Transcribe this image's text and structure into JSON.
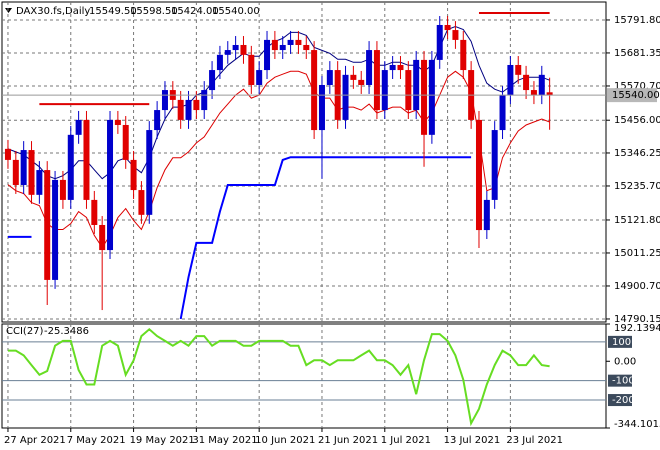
{
  "chart_data": [
    {
      "type": "candlestick",
      "title": "DAX30.fs,Daily",
      "header_values": [
        "15549.50",
        "15598.50",
        "15424.00",
        "15540.00"
      ],
      "open": [
        15360,
        15323,
        15239,
        15356,
        15206,
        15289,
        14921,
        15256,
        15189,
        15407,
        15457,
        15189,
        15105,
        15021,
        15457,
        15440,
        15323,
        15222,
        15139,
        15423,
        15490,
        15557,
        15524,
        15457,
        15524,
        15490,
        15557,
        15624,
        15675,
        15691,
        15708,
        15675,
        15574,
        15624,
        15725,
        15691,
        15708,
        15725,
        15708,
        15691,
        15423,
        15574,
        15624,
        15457,
        15608,
        15591,
        15574,
        15691,
        15490,
        15624,
        15641,
        15624,
        15490,
        15658,
        15407,
        15658,
        15775,
        15758,
        15725,
        15624,
        15457,
        15088,
        15189,
        15423,
        15540,
        15641,
        15608,
        15557,
        15540,
        15549.5
      ],
      "high": [
        15390,
        15353,
        15386,
        15386,
        15319,
        15319,
        15286,
        15286,
        15437,
        15487,
        15487,
        15219,
        15135,
        15487,
        15487,
        15470,
        15353,
        15252,
        15453,
        15520,
        15587,
        15587,
        15554,
        15554,
        15554,
        15587,
        15654,
        15705,
        15721,
        15738,
        15738,
        15705,
        15654,
        15755,
        15755,
        15738,
        15755,
        15755,
        15738,
        15721,
        15604,
        15654,
        15654,
        15638,
        15638,
        15621,
        15721,
        15721,
        15654,
        15671,
        15671,
        15654,
        15688,
        15688,
        15688,
        15805,
        15805,
        15788,
        15755,
        15654,
        15487,
        15219,
        15453,
        15570,
        15671,
        15671,
        15638,
        15587,
        15638,
        15598.5
      ],
      "low": [
        15293,
        15209,
        15209,
        15176,
        15176,
        14837,
        14891,
        15159,
        15159,
        15377,
        15159,
        15075,
        14820,
        14991,
        15410,
        15293,
        15192,
        15109,
        15109,
        15393,
        15460,
        15494,
        15427,
        15427,
        15460,
        15460,
        15527,
        15594,
        15645,
        15661,
        15645,
        15544,
        15544,
        15594,
        15661,
        15661,
        15678,
        15678,
        15661,
        15393,
        15260,
        15544,
        15427,
        15427,
        15561,
        15544,
        15544,
        15460,
        15460,
        15594,
        15594,
        15460,
        15460,
        15300,
        15377,
        15628,
        15728,
        15695,
        15594,
        15427,
        15028,
        15058,
        15159,
        15393,
        15510,
        15578,
        15527,
        15510,
        15510,
        15424
      ],
      "close": [
        15323,
        15239,
        15356,
        15206,
        15289,
        14921,
        15256,
        15189,
        15407,
        15457,
        15189,
        15105,
        15021,
        15457,
        15440,
        15323,
        15222,
        15139,
        15423,
        15490,
        15557,
        15524,
        15457,
        15524,
        15490,
        15557,
        15624,
        15675,
        15691,
        15708,
        15675,
        15574,
        15624,
        15725,
        15691,
        15708,
        15725,
        15708,
        15691,
        15423,
        15574,
        15624,
        15457,
        15608,
        15591,
        15574,
        15691,
        15490,
        15624,
        15641,
        15624,
        15490,
        15658,
        15407,
        15658,
        15775,
        15758,
        15725,
        15624,
        15457,
        15088,
        15189,
        15423,
        15540,
        15641,
        15608,
        15557,
        15540,
        15608,
        15540
      ],
      "up_color": "#0000cc",
      "down_color": "#e00000",
      "lines": [
        {
          "color": "#000080",
          "width": 1,
          "values": [
            15360,
            15350,
            15340,
            15320,
            15300,
            15270,
            15260,
            15270,
            15290,
            15320,
            15320,
            15290,
            15260,
            15280,
            15320,
            15330,
            15300,
            15280,
            15330,
            15400,
            15460,
            15500,
            15500,
            15510,
            15540,
            15550,
            15580,
            15610,
            15640,
            15660,
            15680,
            15670,
            15670,
            15700,
            15720,
            15730,
            15750,
            15750,
            15740,
            15700,
            15690,
            15680,
            15660,
            15660,
            15650,
            15650,
            15660,
            15640,
            15640,
            15650,
            15650,
            15640,
            15640,
            15620,
            15640,
            15700,
            15760,
            15770,
            15760,
            15720,
            15640,
            15580,
            15560,
            15550,
            15570,
            15590,
            15600,
            15600,
            15600,
            15590
          ]
        },
        {
          "color": "#dd0000",
          "width": 1,
          "values": [
            15240,
            15220,
            15210,
            15180,
            15170,
            15110,
            15090,
            15090,
            15110,
            15150,
            15130,
            15070,
            15030,
            15070,
            15130,
            15160,
            15120,
            15090,
            15150,
            15230,
            15290,
            15330,
            15330,
            15350,
            15380,
            15400,
            15440,
            15480,
            15510,
            15540,
            15560,
            15530,
            15540,
            15580,
            15600,
            15610,
            15620,
            15620,
            15610,
            15550,
            15530,
            15530,
            15490,
            15500,
            15500,
            15490,
            15510,
            15480,
            15490,
            15500,
            15500,
            15480,
            15490,
            15450,
            15480,
            15540,
            15600,
            15620,
            15600,
            15550,
            15400,
            15220,
            15230,
            15330,
            15380,
            15420,
            15440,
            15450,
            15460,
            15450
          ]
        },
        {
          "color": "#0000ff",
          "width": 2,
          "values": [
            15065,
            15065,
            15065,
            15065,
            null,
            null,
            null,
            null,
            null,
            null,
            null,
            null,
            null,
            null,
            null,
            null,
            null,
            null,
            null,
            null,
            null,
            null,
            14790,
            14930,
            15045,
            15045,
            15045,
            15150,
            15239,
            15239,
            15239,
            15239,
            15239,
            15239,
            15239,
            15323,
            15332,
            15332,
            15332,
            15332,
            15332,
            15332,
            15332,
            15332,
            15332,
            15332,
            15332,
            15332,
            15332,
            15332,
            15332,
            15332,
            15332,
            15332,
            15332,
            15332,
            15332,
            15332,
            15332,
            15332,
            null,
            null,
            null,
            null,
            null,
            null,
            null,
            null,
            null,
            null
          ]
        }
      ],
      "hlines": [
        {
          "value": 15510,
          "x": [
            4,
            18
          ],
          "color": "#dd0000"
        },
        {
          "value": 15815,
          "x": [
            60,
            69
          ],
          "color": "#dd0000"
        }
      ],
      "last_price": {
        "value": 15540,
        "label": "15540.00"
      },
      "xlim": [
        -0.76,
        76.18
      ],
      "xticks": [
        {
          "value": 0,
          "label": "27 Apr 2021"
        },
        {
          "value": 8,
          "label": "7 May 2021"
        },
        {
          "value": 16,
          "label": "19 May 2021"
        },
        {
          "value": 24,
          "label": "31 May 2021"
        },
        {
          "value": 32,
          "label": "10 Jun 2021"
        },
        {
          "value": 40,
          "label": "21 Jun 2021"
        },
        {
          "value": 48,
          "label": "1 Jul 2021"
        },
        {
          "value": 56,
          "label": "13 Jul 2021"
        },
        {
          "value": 64,
          "label": "23 Jul 2021"
        }
      ],
      "ylim": [
        14780,
        15852
      ],
      "yticks": [
        {
          "value": 15791.8,
          "label": "15791.80"
        },
        {
          "value": 15681.35,
          "label": "15681.35"
        },
        {
          "value": 15570.7,
          "label": "15570.70"
        },
        {
          "value": 15456,
          "label": "15456.00"
        },
        {
          "value": 15346.25,
          "label": "15346.25"
        },
        {
          "value": 15235.7,
          "label": "15235.70"
        },
        {
          "value": 15121.8,
          "label": "15121.80"
        },
        {
          "value": 15011.25,
          "label": "15011.25"
        },
        {
          "value": 14900.7,
          "label": "14900.70"
        },
        {
          "value": 14790.15,
          "label": "14790.15"
        }
      ],
      "grid": true
    },
    {
      "type": "line",
      "title": "CCI(27)",
      "value_label": "-25.3486",
      "color": "#66dd22",
      "values": [
        55,
        55,
        30,
        -20,
        -70,
        -50,
        80,
        105,
        105,
        -45,
        -120,
        -120,
        80,
        105,
        80,
        -70,
        5,
        130,
        165,
        130,
        105,
        80,
        105,
        80,
        130,
        130,
        80,
        105,
        105,
        105,
        80,
        80,
        105,
        105,
        105,
        105,
        80,
        80,
        -20,
        5,
        5,
        -20,
        5,
        5,
        5,
        30,
        55,
        5,
        5,
        -20,
        -70,
        -20,
        -170,
        5,
        140,
        140,
        105,
        30,
        -95,
        -320,
        -245,
        -120,
        -20,
        55,
        30,
        -20,
        -20,
        30,
        -20,
        -25.3486
      ],
      "ylim": [
        -344.1015,
        192.1394
      ],
      "yticks": [
        192.1394,
        {
          "value": 0,
          "label": "0.00"
        },
        -344.1015
      ],
      "levels": [
        100,
        -100,
        -200
      ]
    }
  ]
}
